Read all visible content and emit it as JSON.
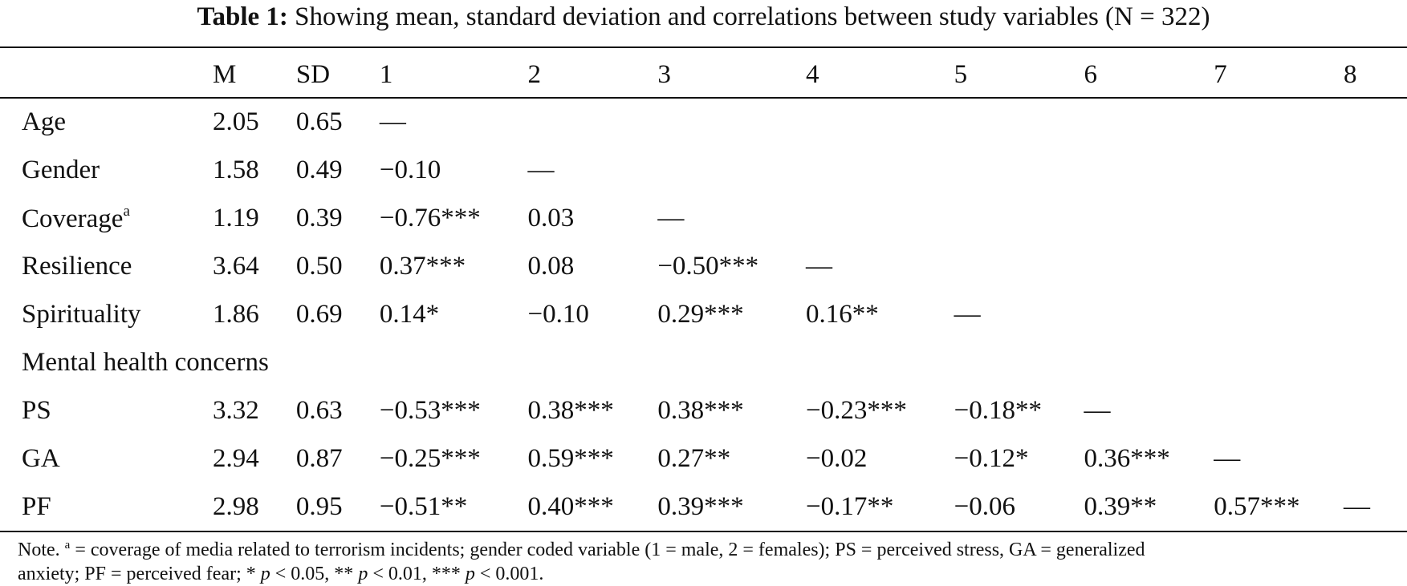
{
  "caption": {
    "label": "Table 1:",
    "text": "Showing mean, standard deviation and correlations between study variables (N = 322)"
  },
  "table": {
    "headers": [
      "",
      "M",
      "SD",
      "1",
      "2",
      "3",
      "4",
      "5",
      "6",
      "7",
      "8"
    ],
    "rows": [
      {
        "label": "Age",
        "sup": "",
        "cells": [
          "2.05",
          "0.65",
          "—",
          "",
          "",
          "",
          "",
          "",
          "",
          ""
        ]
      },
      {
        "label": "Gender",
        "sup": "",
        "cells": [
          "1.58",
          "0.49",
          "−0.10",
          "—",
          "",
          "",
          "",
          "",
          "",
          ""
        ]
      },
      {
        "label": "Coverage",
        "sup": "a",
        "cells": [
          "1.19",
          "0.39",
          "−0.76***",
          "0.03",
          "—",
          "",
          "",
          "",
          "",
          ""
        ]
      },
      {
        "label": "Resilience",
        "sup": "",
        "cells": [
          "3.64",
          "0.50",
          "0.37***",
          "0.08",
          "−0.50***",
          "—",
          "",
          "",
          "",
          ""
        ]
      },
      {
        "label": "Spirituality",
        "sup": "",
        "cells": [
          "1.86",
          "0.69",
          "0.14*",
          "−0.10",
          "0.29***",
          "0.16**",
          "—",
          "",
          "",
          ""
        ]
      },
      {
        "label": "Mental health concerns",
        "sup": "",
        "section": true,
        "cells": []
      },
      {
        "label": "PS",
        "sup": "",
        "cells": [
          "3.32",
          "0.63",
          "−0.53***",
          "0.38***",
          "0.38***",
          "−0.23***",
          "−0.18**",
          "—",
          "",
          ""
        ]
      },
      {
        "label": "GA",
        "sup": "",
        "cells": [
          "2.94",
          "0.87",
          "−0.25***",
          "0.59***",
          "0.27**",
          "−0.02",
          "−0.12*",
          "0.36***",
          "—",
          ""
        ]
      },
      {
        "label": "PF",
        "sup": "",
        "cells": [
          "2.98",
          "0.95",
          "−0.51**",
          "0.40***",
          "0.39***",
          "−0.17**",
          "−0.06",
          "0.39**",
          "0.57***",
          "—"
        ]
      }
    ]
  },
  "note": {
    "prefix": "Note.",
    "sup": "a",
    "line1": " = coverage of media related to terrorism incidents; gender coded variable (1 = male, 2 = females); PS = perceived stress, GA = generalized",
    "line2_a": "anxiety; PF = perceived fear; * ",
    "p1": "p",
    "line2_b": " < 0.05, ** ",
    "p2": "p",
    "line2_c": " < 0.01, *** ",
    "p3": "p",
    "line2_d": " < 0.001."
  }
}
